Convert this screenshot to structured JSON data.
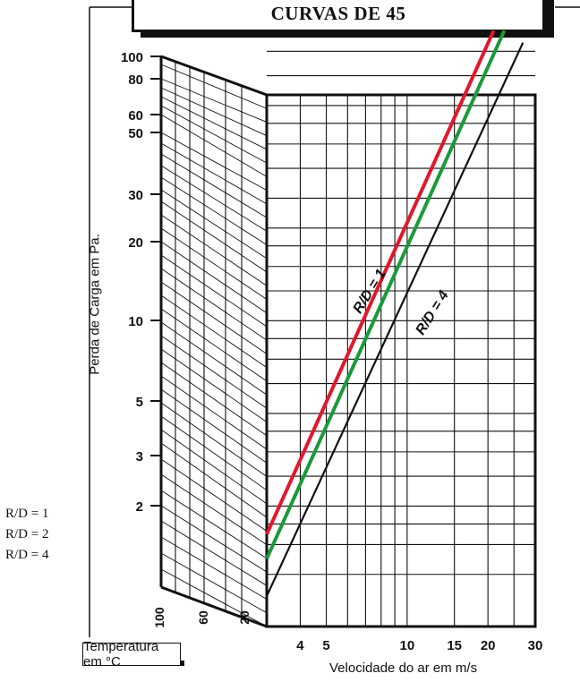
{
  "title": "CURVAS DE 45",
  "legend": [
    {
      "label": "R/D = 1",
      "color": "#e0182d"
    },
    {
      "label": "R/D = 2",
      "color": "#1a9a3a"
    },
    {
      "label": "R/D = 4",
      "color": "#111111"
    }
  ],
  "temperature_label": "Temperatura em °C",
  "chart_data": {
    "type": "line",
    "xlabel": "Velocidade do ar em m/s",
    "ylabel": "Perda de Carga em Pa.",
    "x_scale": "log",
    "y_scale": "log",
    "xlim": [
      3,
      30
    ],
    "ylim": [
      1,
      70
    ],
    "x_ticks": [
      "4",
      "5",
      "10",
      "15",
      "20",
      "30"
    ],
    "y_ticks": [
      "100",
      "80",
      "60",
      "50",
      "30",
      "20",
      "10",
      "5",
      "3",
      "2"
    ],
    "temperature_ticks": [
      "100",
      "60",
      "20"
    ],
    "series": [
      {
        "name": "R/D = 1",
        "color": "#e0182d",
        "x": [
          3,
          21
        ],
        "y": [
          1.62,
          70
        ]
      },
      {
        "name": "R/D = 2",
        "color": "#1a9a3a",
        "x": [
          3,
          23
        ],
        "y": [
          1.35,
          70
        ]
      },
      {
        "name": "R/D = 4",
        "color": "#111111",
        "x": [
          3,
          27
        ],
        "y": [
          1.02,
          64
        ]
      }
    ],
    "annotations": [
      "R/D = 1",
      "R/D = 4"
    ],
    "grid": true
  }
}
